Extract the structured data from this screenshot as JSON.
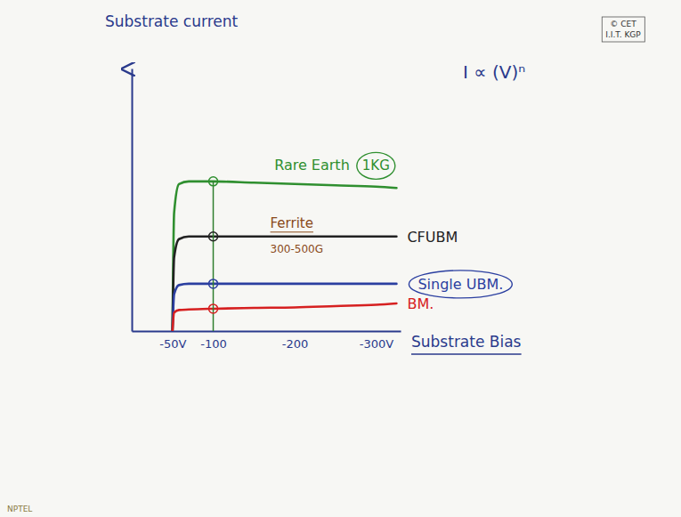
{
  "chart_data": {
    "type": "line",
    "x_label": "Substrate Bias",
    "y_label": "Substrate current",
    "x": [
      -50,
      -52,
      -58,
      -70,
      -100,
      -150,
      -200,
      -250,
      -300,
      -325
    ],
    "series": [
      {
        "name": "Rare Earth",
        "color": "#2f8f2f",
        "values": [
          0,
          4.5,
          5.6,
          5.7,
          5.7,
          5.65,
          5.6,
          5.55,
          5.5,
          5.45
        ]
      },
      {
        "name": "CFUBM",
        "color": "#222222",
        "values": [
          0,
          2.8,
          3.5,
          3.6,
          3.6,
          3.6,
          3.6,
          3.6,
          3.6,
          3.6
        ]
      },
      {
        "name": "Single UBM.",
        "color": "#2b3fa0",
        "values": [
          0,
          1.4,
          1.75,
          1.8,
          1.8,
          1.8,
          1.8,
          1.8,
          1.8,
          1.8
        ]
      },
      {
        "name": "BM.",
        "color": "#d62020",
        "values": [
          0,
          0.7,
          0.8,
          0.82,
          0.85,
          0.88,
          0.9,
          0.95,
          1.0,
          1.05
        ]
      }
    ],
    "reference_x": -100,
    "xlim": [
      0,
      -330
    ],
    "xticks": [
      {
        "value": -50,
        "label": "-50V"
      },
      -100,
      -200,
      {
        "value": -300,
        "label": "-300V"
      }
    ],
    "ylim": [
      0,
      10
    ],
    "yticks": [],
    "tick_labels": "x",
    "grid": false,
    "annotations": [
      "I ∝ (V)ⁿ",
      "1KG",
      "Ferrite",
      "300-500G",
      "© CET",
      "I.I.T. KGP",
      "NPTEL"
    ]
  }
}
